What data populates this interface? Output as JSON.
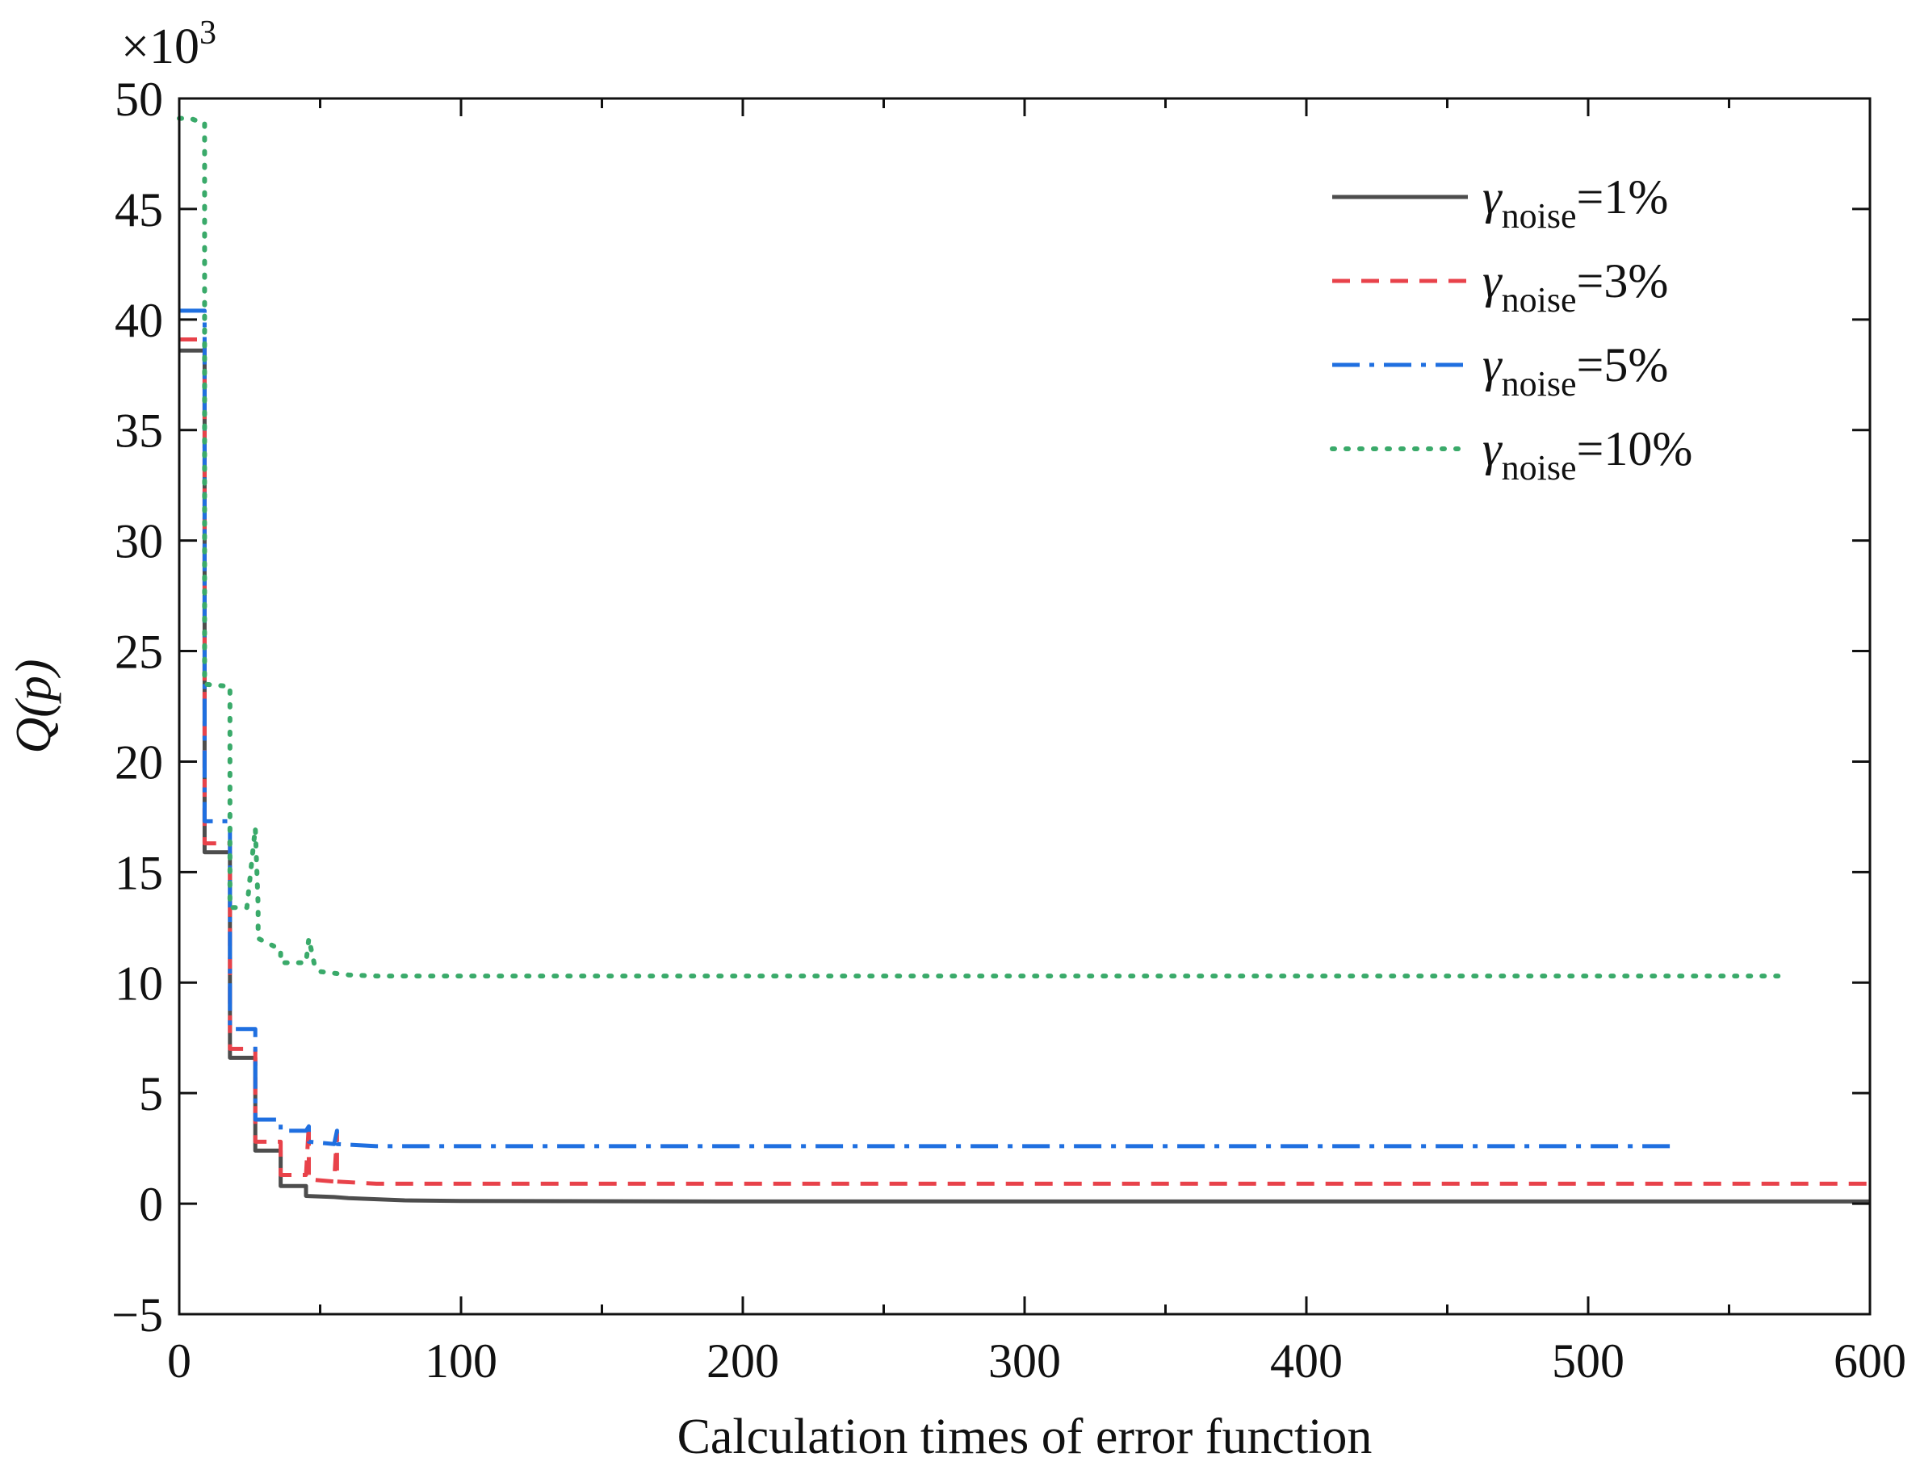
{
  "chart_data": {
    "type": "line",
    "title": "",
    "xlabel": "Calculation times of error function",
    "ylabel": "Q(p)",
    "y_multiplier": "×10³",
    "y_multiplier_base": "×10",
    "y_multiplier_exp": "3",
    "xlim": [
      0,
      600
    ],
    "ylim": [
      -5,
      50
    ],
    "x_ticks": [
      0,
      100,
      200,
      300,
      400,
      500,
      600
    ],
    "x_tick_labels": [
      "0",
      "100",
      "200",
      "300",
      "400",
      "500",
      "600"
    ],
    "y_ticks": [
      -5,
      0,
      5,
      10,
      15,
      20,
      25,
      30,
      35,
      40,
      45,
      50
    ],
    "y_tick_labels": [
      "−5",
      "0",
      "5",
      "10",
      "15",
      "20",
      "25",
      "30",
      "35",
      "40",
      "45",
      "50"
    ],
    "grid": false,
    "legend_position": "top-right",
    "series": [
      {
        "name": "γnoise=1%",
        "legend_symbol": "γ",
        "legend_sub": "noise",
        "legend_value": "=1%",
        "color": "#4d4d4d",
        "style": "solid",
        "x": [
          0,
          9,
          9,
          18,
          18,
          27,
          27,
          36,
          36,
          45,
          45,
          55,
          60,
          70,
          80,
          100,
          200,
          300,
          400,
          500,
          600
        ],
        "y": [
          38.6,
          38.6,
          15.9,
          15.9,
          6.6,
          6.6,
          2.4,
          2.4,
          0.8,
          0.8,
          0.35,
          0.3,
          0.25,
          0.2,
          0.15,
          0.12,
          0.1,
          0.1,
          0.1,
          0.1,
          0.1
        ]
      },
      {
        "name": "γnoise=3%",
        "legend_symbol": "γ",
        "legend_sub": "noise",
        "legend_value": "=3%",
        "color": "#e8424a",
        "style": "dashed",
        "x": [
          0,
          9,
          9,
          18,
          18,
          27,
          27,
          36,
          36,
          45,
          46,
          46,
          55,
          56,
          56,
          70,
          100,
          200,
          300,
          400,
          500,
          600
        ],
        "y": [
          39.1,
          39.1,
          16.3,
          16.3,
          7.0,
          7.0,
          2.8,
          2.8,
          1.3,
          1.3,
          3.6,
          1.1,
          1.0,
          3.2,
          1.0,
          0.9,
          0.9,
          0.9,
          0.9,
          0.9,
          0.9,
          0.9
        ]
      },
      {
        "name": "γnoise=5%",
        "legend_symbol": "γ",
        "legend_sub": "noise",
        "legend_value": "=5%",
        "color": "#1f6fe0",
        "style": "dashdot",
        "x": [
          0,
          9,
          9,
          18,
          18,
          27,
          27,
          36,
          36,
          45,
          46,
          46,
          55,
          56,
          56,
          70,
          100,
          200,
          300,
          400,
          500,
          532
        ],
        "y": [
          40.4,
          40.4,
          17.3,
          17.3,
          7.9,
          7.9,
          3.8,
          3.8,
          3.3,
          3.3,
          3.5,
          2.8,
          2.7,
          3.3,
          2.7,
          2.6,
          2.6,
          2.6,
          2.6,
          2.6,
          2.6,
          2.6
        ]
      },
      {
        "name": "γnoise=10%",
        "legend_symbol": "γ",
        "legend_sub": "noise",
        "legend_value": "=10%",
        "color": "#3aaa6a",
        "style": "dotted",
        "x": [
          0,
          4,
          8,
          9,
          9,
          18,
          18,
          24,
          27,
          28,
          28,
          36,
          36,
          45,
          46,
          48,
          50,
          60,
          70,
          80,
          100,
          200,
          300,
          400,
          500,
          570
        ],
        "y": [
          49.1,
          49.1,
          48.9,
          48.9,
          23.5,
          23.4,
          13.4,
          13.4,
          17.0,
          13.5,
          12.0,
          11.5,
          10.9,
          10.9,
          12.0,
          10.8,
          10.5,
          10.35,
          10.3,
          10.3,
          10.3,
          10.3,
          10.3,
          10.3,
          10.3,
          10.3
        ]
      }
    ]
  }
}
